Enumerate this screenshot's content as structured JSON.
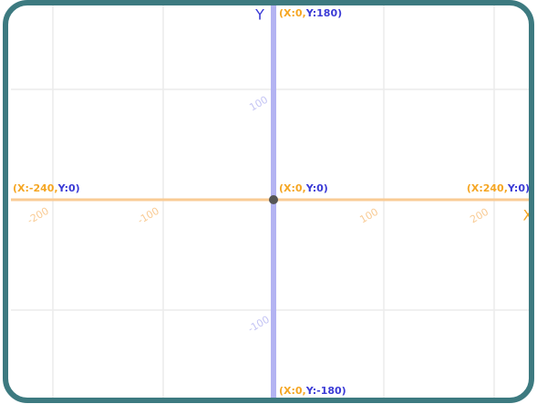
{
  "axes": {
    "x_name": "X",
    "y_name": "Y",
    "xlim": [
      -240,
      240
    ],
    "ylim": [
      -180,
      180
    ],
    "xticks": [
      -200,
      -100,
      100,
      200
    ],
    "yticks": [
      100,
      -100
    ]
  },
  "points": [
    {
      "x_part": "(X:0,",
      "y_part": "Y:180)"
    },
    {
      "x_part": "(X:0,",
      "y_part": "Y:0)"
    },
    {
      "x_part": "(X:-240,",
      "y_part": "Y:0)"
    },
    {
      "x_part": "(X:240,",
      "y_part": "Y:0)"
    },
    {
      "x_part": "(X:0,",
      "y_part": "Y:-180)"
    }
  ]
}
